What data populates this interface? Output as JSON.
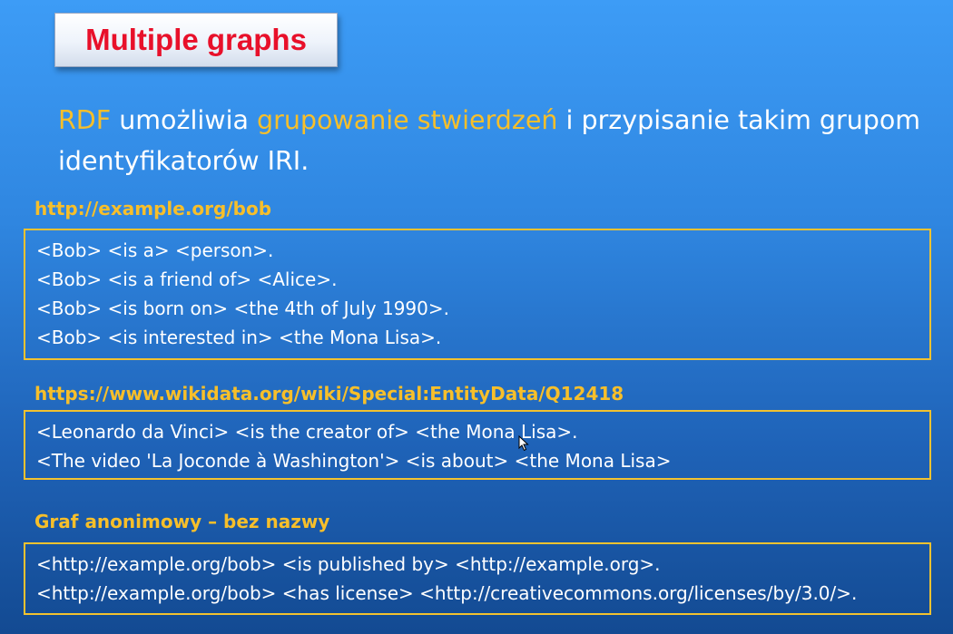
{
  "title": "Multiple graphs",
  "intro": {
    "t1": "RDF",
    "t2": " umożliwia ",
    "t3": "grupowanie stwierdzeń",
    "t4": " i przypisanie takim grupom identyfikatorów IRI."
  },
  "graphs": [
    {
      "name": "http://example.org/bob",
      "triples": [
        "<Bob> <is a> <person>.",
        "<Bob> <is a friend of> <Alice>.",
        "<Bob> <is born on> <the 4th of July 1990>.",
        "<Bob> <is interested in> <the Mona Lisa>."
      ]
    },
    {
      "name": "https://www.wikidata.org/wiki/Special:EntityData/Q12418",
      "triples": [
        "<Leonardo da Vinci> <is the creator of> <the Mona Lisa>.",
        "<The video 'La Joconde à Washington'> <is about> <the Mona Lisa>"
      ]
    },
    {
      "name": "Graf anonimowy – bez nazwy",
      "triples": [
        "<http://example.org/bob> <is published by> <http://example.org>.",
        "<http://example.org/bob> <has license> <http://creativecommons.org/licenses/by/3.0/>."
      ]
    }
  ]
}
